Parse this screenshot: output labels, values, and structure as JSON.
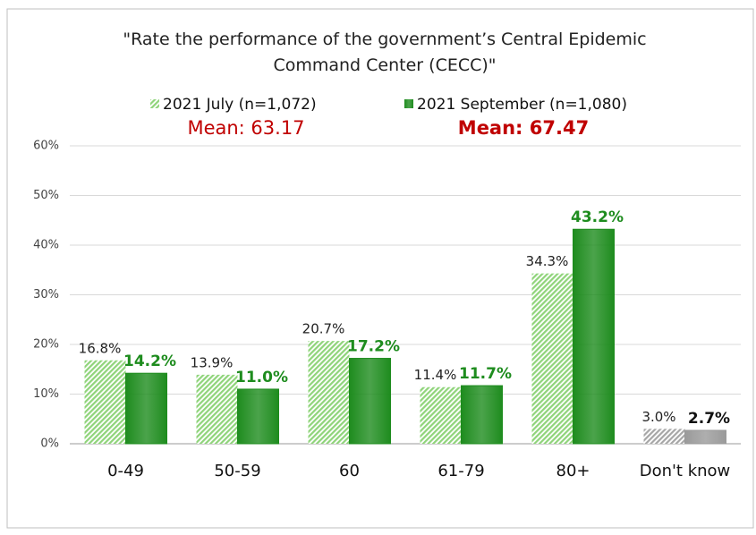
{
  "chart_data": {
    "type": "bar",
    "title": "\"Rate the performance of the government’s Central Epidemic Command Center (CECC)\"",
    "categories": [
      "0-49",
      "50-59",
      "60",
      "61-79",
      "80+",
      "Don't know"
    ],
    "series": [
      {
        "name": "2021 July (n=1,072)",
        "annotation": "Mean: 63.17",
        "color": "#8fd47a",
        "hatch": true,
        "colors": [
          "#8fd47a",
          "#8fd47a",
          "#8fd47a",
          "#8fd47a",
          "#8fd47a",
          "#a6a6a6"
        ],
        "values": [
          16.8,
          13.9,
          20.7,
          11.4,
          34.3,
          3.0
        ],
        "value_labels": [
          "16.8%",
          "13.9%",
          "20.7%",
          "11.4%",
          "34.3%",
          "3.0%"
        ]
      },
      {
        "name": "2021 September (n=1,080)",
        "annotation": "Mean: 67.47",
        "color": "#1e8c1e",
        "hatch": false,
        "colors": [
          "#1e8c1e",
          "#1e8c1e",
          "#1e8c1e",
          "#1e8c1e",
          "#1e8c1e",
          "#9a9a9a"
        ],
        "values": [
          14.2,
          11.0,
          17.2,
          11.7,
          43.2,
          2.7
        ],
        "value_labels": [
          "14.2%",
          "11.0%",
          "17.2%",
          "11.7%",
          "43.2%",
          "2.7%"
        ]
      }
    ],
    "ylim": [
      0,
      60
    ],
    "yticks": [
      {
        "value": 0,
        "label": "0%"
      },
      {
        "value": 10,
        "label": "10%"
      },
      {
        "value": 20,
        "label": "20%"
      },
      {
        "value": 30,
        "label": "30%"
      },
      {
        "value": 40,
        "label": "40%"
      },
      {
        "value": 50,
        "label": "50%"
      },
      {
        "value": 60,
        "label": "60%"
      }
    ],
    "grid": true
  }
}
